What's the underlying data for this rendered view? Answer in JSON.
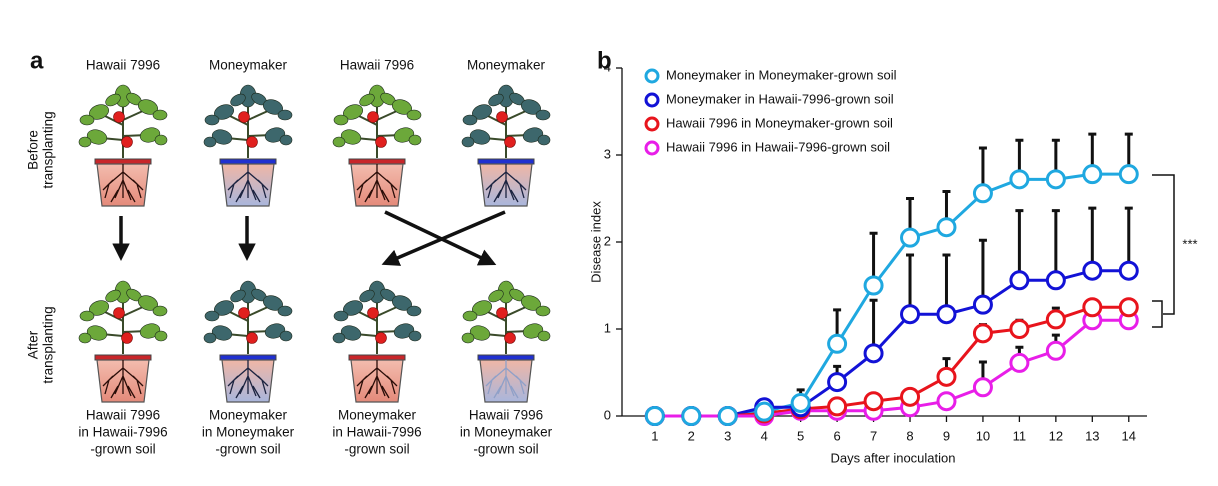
{
  "panel_a": {
    "label": "a",
    "columns": [
      "Hawaii 7996",
      "Moneymaker",
      "Hawaii 7996",
      "Moneymaker"
    ],
    "rows": [
      [
        "Before",
        "transplanting"
      ],
      [
        "After",
        "transplanting"
      ]
    ],
    "outcomes": [
      [
        "Hawaii 7996",
        "in Hawaii-7996",
        "-grown soil"
      ],
      [
        "Moneymaker",
        "in Moneymaker",
        "-grown soil"
      ],
      [
        "Moneymaker",
        "in Hawaii-7996",
        "-grown soil"
      ],
      [
        "Hawaii 7996",
        "in Moneymaker",
        "-grown soil"
      ]
    ]
  },
  "chart_data": {
    "type": "line",
    "panel_label": "b",
    "xlabel": "Days after inoculation",
    "ylabel": "Disease index",
    "x": [
      1,
      2,
      3,
      4,
      5,
      6,
      7,
      8,
      9,
      10,
      11,
      12,
      13,
      14
    ],
    "xlim": [
      0.1,
      14.5
    ],
    "xticks": [
      1,
      2,
      3,
      4,
      5,
      6,
      7,
      8,
      9,
      10,
      11,
      12,
      13,
      14
    ],
    "ylim": [
      0,
      4
    ],
    "yticks": [
      0,
      1,
      2,
      3,
      4
    ],
    "annotation": "***",
    "series": [
      {
        "name": "Moneymaker in Moneymaker-grown soil",
        "color": "#1fa8e0",
        "values": [
          0,
          0,
          0,
          0.05,
          0.15,
          0.83,
          1.5,
          2.05,
          2.17,
          2.56,
          2.72,
          2.72,
          2.78,
          2.78
        ],
        "errors": [
          null,
          null,
          null,
          null,
          0.15,
          0.39,
          0.6,
          0.45,
          0.41,
          0.52,
          0.45,
          0.45,
          0.46,
          0.46
        ]
      },
      {
        "name": "Moneymaker in Hawaii-7996-grown soil",
        "color": "#1212d6",
        "values": [
          0,
          0,
          0,
          0.1,
          0.1,
          0.39,
          0.72,
          1.17,
          1.17,
          1.28,
          1.56,
          1.56,
          1.67,
          1.67
        ],
        "errors": [
          null,
          null,
          null,
          null,
          null,
          0.18,
          0.61,
          0.68,
          0.68,
          0.74,
          0.8,
          0.8,
          0.72,
          0.72
        ]
      },
      {
        "name": "Hawaii 7996 in Moneymaker-grown soil",
        "color": "#e8141c",
        "values": [
          0,
          0,
          0,
          0.03,
          0.08,
          0.11,
          0.17,
          0.22,
          0.45,
          0.95,
          1.0,
          1.11,
          1.25,
          1.25
        ],
        "errors": [
          null,
          null,
          null,
          null,
          null,
          null,
          null,
          null,
          0.21,
          0.1,
          0.1,
          0.13,
          0.05,
          null
        ]
      },
      {
        "name": "Hawaii 7996 in Hawaii-7996-grown soil",
        "color": "#e81ee8",
        "values": [
          0,
          0,
          0,
          0,
          0.06,
          0.06,
          0.06,
          0.1,
          0.17,
          0.33,
          0.61,
          0.75,
          1.1,
          1.1
        ],
        "errors": [
          null,
          null,
          null,
          null,
          null,
          null,
          null,
          null,
          null,
          0.29,
          0.18,
          0.18,
          0.1,
          null
        ]
      }
    ]
  }
}
